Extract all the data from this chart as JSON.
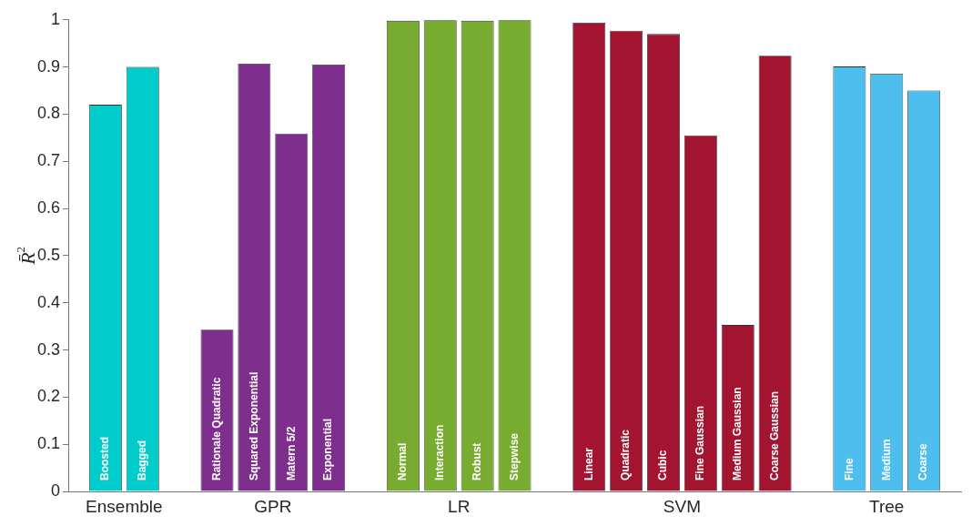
{
  "chart_data": {
    "type": "bar",
    "ylabel": "R̄$^{2}$",
    "categories": [
      null,
      "Boosted",
      "Bagged",
      null,
      "Rationale Quadratic",
      "Squared Exponential",
      "Matern 5/2",
      "Exponential",
      null,
      "Normal",
      "Interaction",
      "Robust",
      "Stepwise",
      null,
      "Linear",
      "Quadratic",
      "Cubic",
      "Fine Gaussian",
      "Medium Gaussian",
      "Coarse Gaussian",
      null,
      "Fine",
      "Medium",
      "Coarse",
      null
    ],
    "series": [
      {
        "name": "Ensemble",
        "color": "#00cccc",
        "values": [
          null,
          0.82,
          0.9,
          null,
          null,
          null,
          null,
          null,
          null,
          null,
          null,
          null,
          null,
          null,
          null,
          null,
          null,
          null,
          null,
          null,
          null,
          null,
          null,
          null,
          null
        ]
      },
      {
        "name": "GPR",
        "color": "#7e2f8e",
        "values": [
          null,
          null,
          null,
          null,
          0.343,
          0.907,
          0.759,
          0.905,
          null,
          null,
          null,
          null,
          null,
          null,
          null,
          null,
          null,
          null,
          null,
          null,
          null,
          null,
          null,
          null,
          null
        ]
      },
      {
        "name": "LR",
        "color": "#77ac30",
        "values": [
          null,
          null,
          null,
          null,
          null,
          null,
          null,
          null,
          null,
          0.998,
          0.999,
          0.998,
          0.999,
          null,
          null,
          null,
          null,
          null,
          null,
          null,
          null,
          null,
          null,
          null,
          null
        ]
      },
      {
        "name": "SVM",
        "color": "#a2142f",
        "values": [
          null,
          null,
          null,
          null,
          null,
          null,
          null,
          null,
          null,
          null,
          null,
          null,
          null,
          null,
          0.994,
          0.977,
          0.97,
          0.755,
          0.353,
          0.924,
          null,
          null,
          null,
          null,
          null
        ]
      },
      {
        "name": "Tree",
        "color": "#4dbeee",
        "values": [
          null,
          null,
          null,
          null,
          null,
          null,
          null,
          null,
          null,
          null,
          null,
          null,
          null,
          null,
          null,
          null,
          null,
          null,
          null,
          null,
          null,
          0.901,
          0.886,
          0.85,
          null
        ]
      }
    ],
    "ylim": [
      0,
      1
    ],
    "yticks": [
      0,
      0.1,
      0.2,
      0.3,
      0.4,
      0.5,
      0.6,
      0.7,
      0.8,
      0.9,
      1
    ],
    "grid": false,
    "legend": false
  }
}
